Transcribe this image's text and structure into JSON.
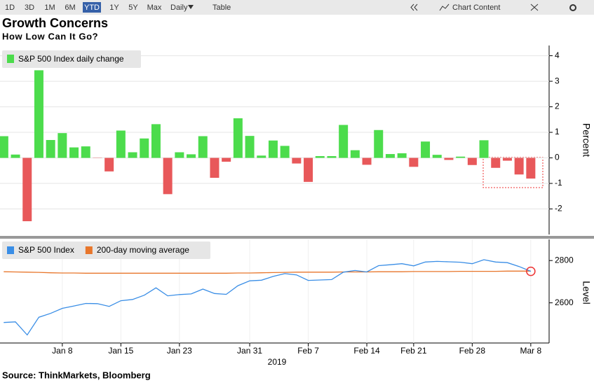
{
  "toolbar": {
    "ranges": [
      "1D",
      "3D",
      "1M",
      "6M",
      "YTD",
      "1Y",
      "5Y",
      "Max"
    ],
    "active_range": "YTD",
    "frequency": "Daily",
    "table": "Table",
    "chart_content": "Chart Content"
  },
  "chart_data": [
    {
      "type": "bar",
      "title": "Growth Concerns",
      "subtitle": "How Low Can It Go?",
      "ylabel": "Percent",
      "ylim": [
        -3,
        4.4
      ],
      "yticks": [
        -2,
        -1,
        0,
        1,
        2,
        3,
        4
      ],
      "grid": true,
      "series": [
        {
          "name": "S&P 500 Index daily change",
          "color": "#4cdc4c",
          "negative_color": "#e8585a",
          "values": [
            0.85,
            0.13,
            -2.48,
            3.43,
            0.7,
            0.97,
            0.41,
            0.45,
            -0.01,
            -0.53,
            1.07,
            0.22,
            0.76,
            1.32,
            -1.42,
            0.22,
            0.14,
            0.85,
            -0.78,
            -0.15,
            1.55,
            0.86,
            0.09,
            0.68,
            0.47,
            -0.22,
            -0.94,
            0.07,
            0.07,
            1.29,
            0.3,
            -0.27,
            1.09,
            0.15,
            0.18,
            -0.35,
            0.64,
            0.12,
            -0.08,
            0.05,
            -0.28,
            0.69,
            -0.39,
            -0.11,
            -0.65,
            -0.81
          ]
        }
      ]
    },
    {
      "type": "line",
      "ylabel": "Level",
      "xlabel": "2019",
      "categories": [
        null,
        null,
        null,
        null,
        null,
        "Jan 8",
        null,
        null,
        null,
        null,
        "Jan 15",
        null,
        null,
        null,
        null,
        "Jan 23",
        null,
        null,
        null,
        null,
        null,
        "Jan 31",
        null,
        null,
        null,
        null,
        "Feb 7",
        null,
        null,
        null,
        null,
        "Feb 14",
        null,
        null,
        null,
        "Feb 21",
        null,
        null,
        null,
        null,
        "Feb 28",
        null,
        null,
        null,
        null,
        "Mar 8"
      ],
      "ylim": [
        2410,
        2900
      ],
      "yticks": [
        2600,
        2800
      ],
      "series": [
        {
          "name": "S&P 500 Index",
          "color": "#3a8ee6",
          "values": [
            2507,
            2510,
            2448,
            2532,
            2550,
            2574,
            2585,
            2597,
            2596,
            2583,
            2610,
            2616,
            2636,
            2671,
            2633,
            2639,
            2642,
            2665,
            2644,
            2640,
            2681,
            2704,
            2707,
            2725,
            2738,
            2732,
            2706,
            2708,
            2710,
            2745,
            2753,
            2746,
            2776,
            2780,
            2785,
            2775,
            2793,
            2796,
            2794,
            2792,
            2785,
            2804,
            2793,
            2790,
            2772,
            2749
          ]
        },
        {
          "name": "200-day moving average",
          "color": "#e8762b",
          "values": [
            2747,
            2746,
            2745,
            2744,
            2742,
            2741,
            2741,
            2740,
            2740,
            2740,
            2740,
            2740,
            2740,
            2740,
            2740,
            2740,
            2740,
            2740,
            2740,
            2740,
            2741,
            2741,
            2742,
            2743,
            2744,
            2745,
            2745,
            2745,
            2745,
            2746,
            2746,
            2746,
            2747,
            2747,
            2747,
            2748,
            2748,
            2748,
            2748,
            2749,
            2749,
            2749,
            2749,
            2750,
            2750,
            2750
          ]
        }
      ]
    }
  ],
  "source": "Source: ThinkMarkets, Bloomberg"
}
